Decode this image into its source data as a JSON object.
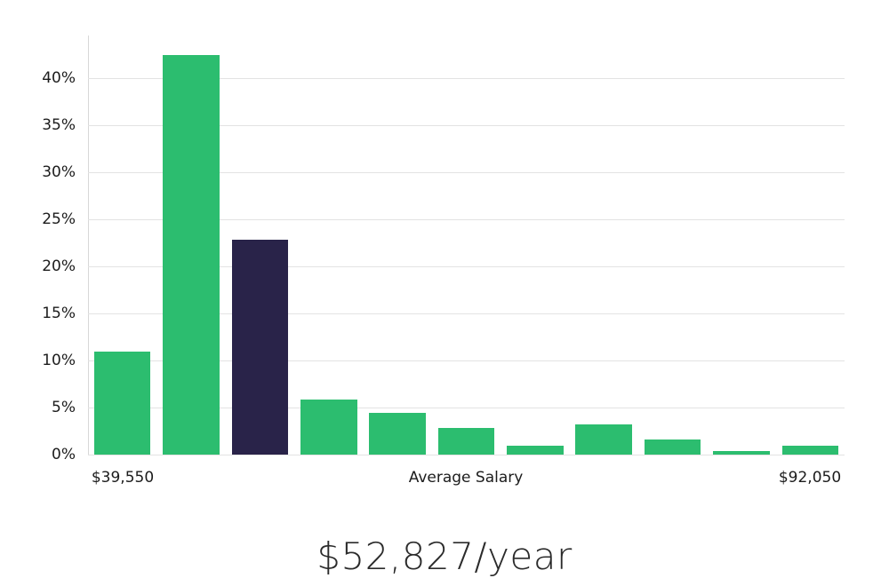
{
  "chart_data": {
    "type": "bar",
    "title": "$52,827/year",
    "xlabel": "Average Salary",
    "ylabel": "",
    "x_axis_labels": {
      "left": "$39,550",
      "center": "Average Salary",
      "right": "$92,050"
    },
    "values": [
      10.9,
      42.4,
      22.8,
      5.8,
      4.4,
      2.8,
      0.9,
      3.2,
      1.6,
      0.4,
      0.9
    ],
    "highlight_index": 2,
    "y_ticks": [
      0,
      5,
      10,
      15,
      20,
      25,
      30,
      35,
      40
    ],
    "y_tick_suffix": "%",
    "ylim": [
      0,
      44.5
    ],
    "grid": true,
    "legend_position": "none",
    "colors": {
      "bar": "#2cbd6f",
      "highlight_bar": "#292349",
      "gridline": "#e3e3e3",
      "axis_line": "#d8d8d8",
      "tick_text": "#1c1c1c",
      "caption_text": "#2b2b2b"
    }
  }
}
